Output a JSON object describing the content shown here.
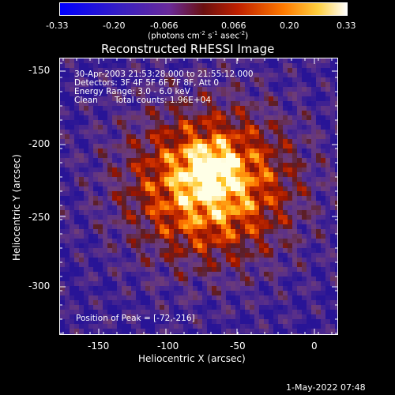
{
  "colorbar": {
    "ticks": [
      "-0.33",
      "-0.20",
      "-0.066",
      "0.066",
      "0.20",
      "0.33"
    ],
    "units_prefix": "(photons cm",
    "units_exp1": "-2",
    "units_mid1": " s",
    "units_exp2": "-1",
    "units_mid2": " asec",
    "units_exp3": "-2",
    "units_suffix": ")"
  },
  "title": "Reconstructed RHESSI Image",
  "info": {
    "time_range": "30-Apr-2003 21:53:28.000 to 21:55:12.000",
    "detectors": "Detectors: 3F 4F 5F 6F 7F 8F, Att 0",
    "energy": "Energy Range: 3.0 - 6.0 keV",
    "clean_label": "Clean",
    "total_counts": "Total counts: 1.96E+04",
    "peak": "Position of Peak = [-72,-216]"
  },
  "axes": {
    "xlabel": "Heliocentric X (arcsec)",
    "ylabel": "Heliocentric Y (arcsec)",
    "xticks": [
      "-150",
      "-100",
      "-50",
      "0"
    ],
    "yticks": [
      "-150",
      "-200",
      "-250",
      "-300"
    ]
  },
  "timestamp": "1-May-2022 07:48",
  "colors": {
    "background": "#000000",
    "colormap": [
      "#0000ff",
      "#5a2da0",
      "#7a3b8a",
      "#b02000",
      "#e05000",
      "#ff9a00",
      "#ffe060",
      "#ffffff"
    ]
  }
}
